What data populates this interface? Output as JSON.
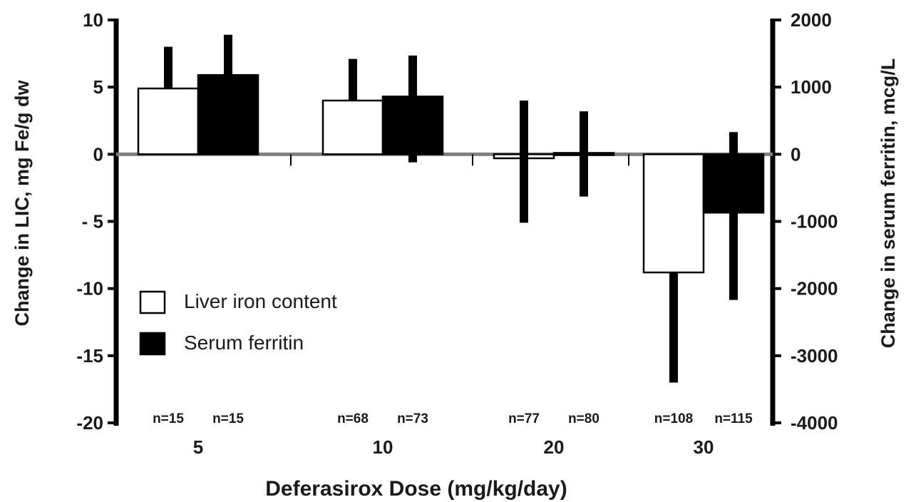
{
  "chart_data": {
    "type": "bar",
    "xlabel": "Deferasirox Dose (mg/kg/day)",
    "ylabel_left": "Change in LIC, mg Fe/g dw",
    "ylabel_right": "Change in serum ferritin, mcg/L",
    "categories": [
      "5",
      "10",
      "20",
      "30"
    ],
    "ylim_left": [
      -20,
      10
    ],
    "ylim_right": [
      -4000,
      2000
    ],
    "yticks_left": [
      "10",
      "5",
      "0",
      "- 5",
      "-10",
      "-15",
      "-20"
    ],
    "yticks_right": [
      "2000",
      "1000",
      "0",
      "-1000",
      "-2000",
      "-3000",
      "-4000"
    ],
    "series": [
      {
        "name": "Liver iron content",
        "axis": "left",
        "fill": "#ffffff",
        "values": [
          4.9,
          4.0,
          -0.3,
          -8.8
        ],
        "error_high": [
          8.0,
          7.1,
          4.0,
          -8.8
        ],
        "error_low": [
          4.9,
          4.0,
          -5.1,
          -17.0
        ],
        "n": [
          "n=15",
          "n=68",
          "n=77",
          "n=108"
        ]
      },
      {
        "name": "Serum ferritin",
        "axis": "right",
        "fill": "#000000",
        "values": [
          1180,
          860,
          20,
          -870
        ],
        "error_high": [
          1780,
          1470,
          640,
          330
        ],
        "error_low": [
          1180,
          -120,
          -630,
          -2170
        ],
        "n": [
          "n=15",
          "n=73",
          "n=80",
          "n=115"
        ]
      }
    ],
    "legend": {
      "position": "bottom-left",
      "items": [
        {
          "label": "Liver iron content",
          "fill": "#ffffff"
        },
        {
          "label": "Serum ferritin",
          "fill": "#000000"
        }
      ]
    },
    "colors": {
      "zero_line": "#808080",
      "axis": "#000000"
    }
  }
}
